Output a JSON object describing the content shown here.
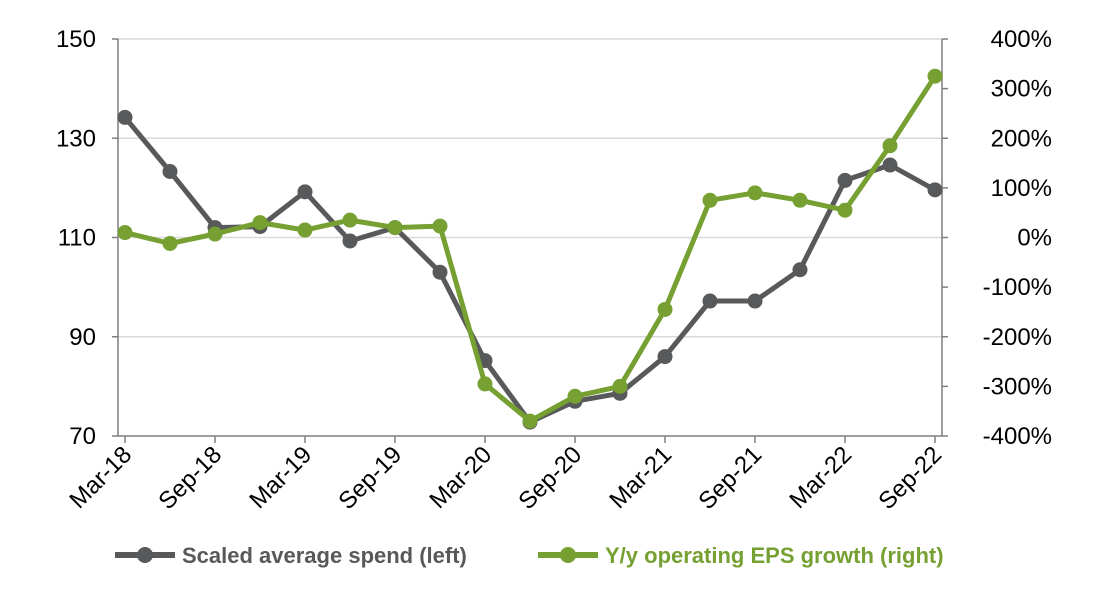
{
  "chart_data": {
    "type": "line",
    "title": "",
    "x": [
      "Mar-18",
      "Jun-18",
      "Sep-18",
      "Dec-18",
      "Mar-19",
      "Jun-19",
      "Sep-19",
      "Dec-19",
      "Mar-20",
      "Jun-20",
      "Sep-20",
      "Dec-20",
      "Mar-21",
      "Jun-21",
      "Sep-21",
      "Dec-21",
      "Mar-22",
      "Jun-22",
      "Sep-22"
    ],
    "x_tick_labels": [
      "Mar-18",
      "Sep-18",
      "Mar-19",
      "Sep-19",
      "Mar-20",
      "Sep-20",
      "Mar-21",
      "Sep-21",
      "Mar-22",
      "Sep-22"
    ],
    "y_left": {
      "ylim": [
        70,
        150
      ],
      "ticks": [
        "70",
        "90",
        "110",
        "130",
        "150"
      ]
    },
    "y_right": {
      "ylim": [
        -400,
        400
      ],
      "ticks": [
        "-400%",
        "-300%",
        "-200%",
        "-100%",
        "0%",
        "100%",
        "200%",
        "300%",
        "400%"
      ]
    },
    "grid": true,
    "legend_position": "bottom",
    "series": [
      {
        "name": "Scaled average spend (left)",
        "axis": "left",
        "color": "#58595b",
        "values": [
          134.2,
          123.3,
          112.0,
          112.2,
          119.2,
          109.3,
          112.0,
          103.0,
          85.2,
          72.8,
          77.0,
          78.6,
          86.0,
          97.2,
          97.2,
          103.5,
          121.5,
          124.6,
          119.6
        ]
      },
      {
        "name": "Y/y operating EPS growth (right)",
        "axis": "right",
        "color": "#76a032",
        "values": [
          10,
          -12,
          7,
          30,
          15,
          35,
          20,
          23,
          -295,
          -370,
          -320,
          -300,
          -145,
          75,
          90,
          75,
          55,
          185,
          325
        ]
      }
    ]
  }
}
